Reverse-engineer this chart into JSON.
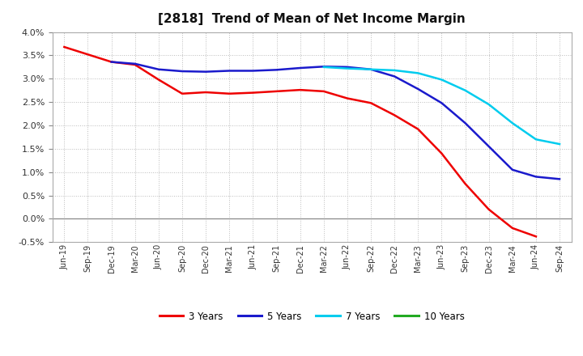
{
  "title": "[2818]  Trend of Mean of Net Income Margin",
  "background_color": "#ffffff",
  "plot_bg_color": "#ffffff",
  "grid_color": "#bbbbbb",
  "x_labels": [
    "Jun-19",
    "Sep-19",
    "Dec-19",
    "Mar-20",
    "Jun-20",
    "Sep-20",
    "Dec-20",
    "Mar-21",
    "Jun-21",
    "Sep-21",
    "Dec-21",
    "Mar-22",
    "Jun-22",
    "Sep-22",
    "Dec-22",
    "Mar-23",
    "Jun-23",
    "Sep-23",
    "Dec-23",
    "Mar-24",
    "Jun-24",
    "Sep-24"
  ],
  "ylim": [
    -0.005,
    0.04
  ],
  "series": {
    "3 Years": {
      "color": "#ee0000",
      "data_x": [
        0,
        1,
        2,
        3,
        4,
        5,
        6,
        7,
        8,
        9,
        10,
        11,
        12,
        13,
        14,
        15,
        16,
        17,
        18,
        19,
        20
      ],
      "data_y": [
        0.0368,
        0.0352,
        0.0336,
        0.033,
        0.0298,
        0.0268,
        0.0271,
        0.0268,
        0.027,
        0.0273,
        0.0276,
        0.0273,
        0.0258,
        0.0248,
        0.0222,
        0.0192,
        0.014,
        0.0075,
        0.002,
        -0.002,
        -0.0038
      ]
    },
    "5 Years": {
      "color": "#1a1acc",
      "data_x": [
        2,
        3,
        4,
        5,
        6,
        7,
        8,
        9,
        10,
        11,
        12,
        13,
        14,
        15,
        16,
        17,
        18,
        19,
        20,
        21
      ],
      "data_y": [
        0.0336,
        0.0332,
        0.032,
        0.0316,
        0.0315,
        0.0317,
        0.0317,
        0.0319,
        0.0323,
        0.0326,
        0.0325,
        0.032,
        0.0305,
        0.0278,
        0.0248,
        0.0205,
        0.0155,
        0.0105,
        0.009,
        0.0085
      ]
    },
    "7 Years": {
      "color": "#00ccee",
      "data_x": [
        11,
        12,
        13,
        14,
        15,
        16,
        17,
        18,
        19,
        20,
        21
      ],
      "data_y": [
        0.0325,
        0.0322,
        0.032,
        0.0318,
        0.0312,
        0.0298,
        0.0275,
        0.0245,
        0.0205,
        0.017,
        0.016
      ]
    },
    "10 Years": {
      "color": "#22aa22",
      "data_x": [],
      "data_y": []
    }
  },
  "legend_labels": [
    "3 Years",
    "5 Years",
    "7 Years",
    "10 Years"
  ],
  "legend_colors": [
    "#ee0000",
    "#1a1acc",
    "#00ccee",
    "#22aa22"
  ]
}
